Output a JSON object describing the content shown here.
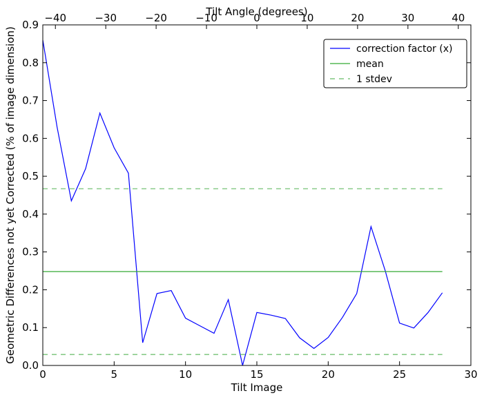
{
  "chart_data": {
    "type": "line",
    "xlabel": "Tilt Image",
    "ylabel": "Geometric Differences not yet Corrected (% of image dimension)",
    "top_xlabel": "Tilt Angle (degrees)",
    "xlim": [
      0,
      30
    ],
    "ylim": [
      0,
      0.9
    ],
    "top_xlim": [
      -42.5,
      42.5
    ],
    "x_ticks": [
      0,
      5,
      10,
      15,
      20,
      25,
      30
    ],
    "x_tick_labels": [
      "0",
      "5",
      "10",
      "15",
      "20",
      "25",
      "30"
    ],
    "y_ticks": [
      0,
      0.1,
      0.2,
      0.3,
      0.4,
      0.5,
      0.6,
      0.7,
      0.8,
      0.9
    ],
    "y_tick_labels": [
      "0.0",
      "0.1",
      "0.2",
      "0.3",
      "0.4",
      "0.5",
      "0.6",
      "0.7",
      "0.8",
      "0.9"
    ],
    "top_x_ticks": [
      -40,
      -30,
      -20,
      -10,
      0,
      10,
      20,
      30,
      40
    ],
    "top_x_tick_labels": [
      "−40",
      "−30",
      "−20",
      "−10",
      "0",
      "10",
      "20",
      "30",
      "40"
    ],
    "legend_placement": "top-right",
    "grid": false,
    "series": [
      {
        "name": "correction factor (x)",
        "color": "#0000ff",
        "style": "solid",
        "x": [
          0,
          1,
          2,
          3,
          4,
          5,
          6,
          7,
          8,
          9,
          10,
          11,
          12,
          13,
          14,
          15,
          16,
          17,
          18,
          19,
          20,
          21,
          22,
          23,
          24,
          25,
          26,
          27,
          28
        ],
        "y": [
          0.86,
          0.63,
          0.435,
          0.52,
          0.667,
          0.575,
          0.508,
          0.06,
          0.19,
          0.198,
          0.125,
          0.105,
          0.085,
          0.174,
          0.0,
          0.14,
          0.133,
          0.124,
          0.073,
          0.045,
          0.074,
          0.127,
          0.19,
          0.367,
          0.25,
          0.112,
          0.099,
          0.14,
          0.192
        ]
      },
      {
        "name": "mean",
        "color": "#33aa33",
        "style": "solid",
        "x": [
          0,
          28
        ],
        "y": [
          0.248,
          0.248
        ]
      },
      {
        "name": "1 stdev",
        "color": "#66bb66",
        "style": "dashed",
        "x": [
          0,
          28
        ],
        "y": [
          0.467,
          0.467
        ]
      },
      {
        "name": "",
        "color": "#66bb66",
        "style": "dashed",
        "x": [
          0,
          28
        ],
        "y": [
          0.029,
          0.029
        ]
      }
    ]
  }
}
